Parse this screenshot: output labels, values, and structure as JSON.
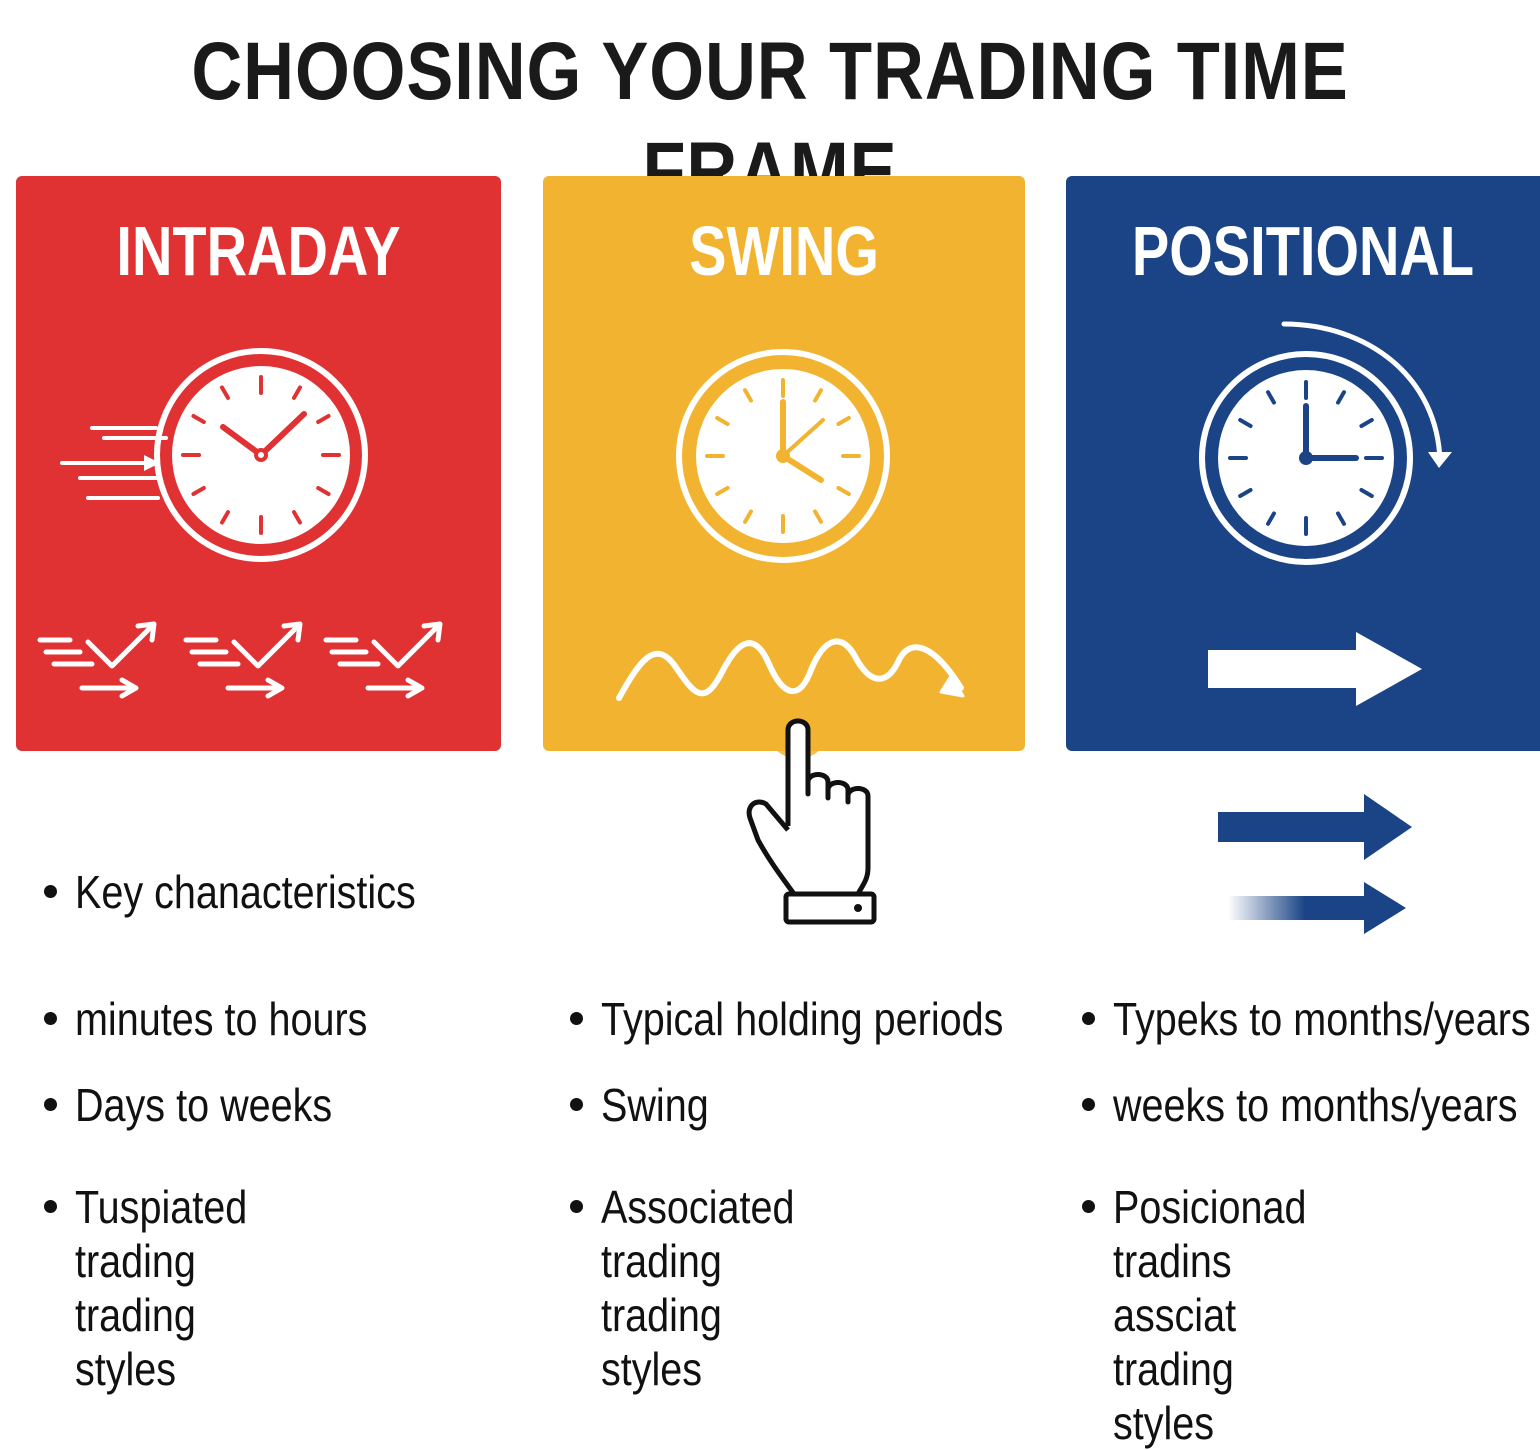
{
  "title": "CHOOSING YOUR TRADING TIME FRAME",
  "colors": {
    "intraday": "#e03233",
    "swing": "#f2b430",
    "positional": "#1b4486",
    "text": "#111111"
  },
  "panels": [
    {
      "id": "intraday",
      "label": "INTRADAY",
      "icon": "fast-clock-icon",
      "graphic": "quick-trade-arrows-icon"
    },
    {
      "id": "swing",
      "label": "SWING",
      "icon": "clock-icon",
      "graphic": "wave-trend-icon"
    },
    {
      "id": "positional",
      "label": "POSITIONAL",
      "icon": "clock-with-circular-arrow-icon",
      "graphic": "long-arrow-icon"
    }
  ],
  "pointer_icon": "hand-pointer-icon",
  "outside_arrows_icon": "blue-double-arrow-icon",
  "columns": [
    {
      "id": "intraday",
      "bullets": [
        "Key chanacteristics",
        "minutes to hours",
        "Days to weeks",
        "Tuspiated trading\ntrading styles"
      ]
    },
    {
      "id": "swing",
      "bullets": [
        "Typical holding periods",
        "Swing",
        "Associated trading\ntrading styles"
      ]
    },
    {
      "id": "positional",
      "bullets": [
        "Typeks to months/years",
        "weeks to months/years",
        "Posicionad tradins\nassciat trading styles"
      ]
    }
  ]
}
